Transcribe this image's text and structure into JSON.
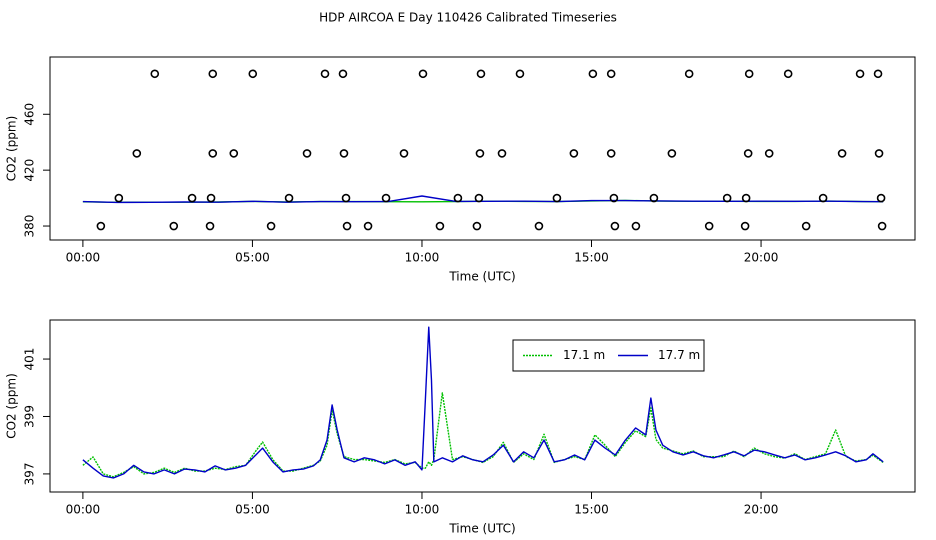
{
  "title": "HDP AIRCOA E  Day 110426  Calibrated Timeseries",
  "chart_data": [
    {
      "type": "line",
      "xlabel": "Time (UTC)",
      "ylabel": "CO2 (ppm)",
      "xlim": [
        -0.97,
        24.54
      ],
      "ylim": [
        370,
        501
      ],
      "xticks": [
        {
          "value": 0,
          "label": "00:00"
        },
        {
          "value": 5,
          "label": "05:00"
        },
        {
          "value": 10,
          "label": "10:00"
        },
        {
          "value": 15,
          "label": "15:00"
        },
        {
          "value": 20,
          "label": "20:00"
        }
      ],
      "yticks": [
        380,
        420,
        460
      ],
      "series": [
        {
          "color": "#00c000",
          "marker": "circle",
          "x": [
            2.12,
            3.83,
            5.01,
            7.14,
            7.67,
            10.03,
            11.74,
            12.89,
            15.04,
            15.58,
            17.88,
            19.65,
            20.8,
            22.92,
            23.45,
            1.59,
            3.83,
            4.45,
            6.61,
            7.7,
            9.47,
            11.71,
            12.36,
            14.48,
            15.58,
            17.37,
            19.62,
            20.24,
            22.39,
            23.48,
            1.06,
            3.22,
            3.78,
            6.08,
            7.76,
            8.94,
            11.06,
            11.68,
            13.98,
            15.66,
            16.84,
            19.0,
            19.56,
            21.83,
            23.54,
            0.53,
            2.68,
            3.75,
            5.55,
            7.79,
            8.41,
            10.53,
            11.62,
            13.45,
            15.69,
            16.31,
            18.47,
            19.53,
            21.33,
            23.57
          ],
          "values": [
            489,
            489,
            489,
            489,
            489,
            489,
            489,
            489,
            489,
            489,
            489,
            489,
            489,
            489,
            489,
            432,
            432,
            432,
            432,
            432,
            432,
            432,
            432,
            432,
            432,
            432,
            432,
            432,
            432,
            432,
            400,
            400,
            400,
            400,
            400,
            400,
            400,
            400,
            400,
            400,
            400,
            400,
            400,
            400,
            400,
            380,
            380,
            380,
            380,
            380,
            380,
            380,
            380,
            380,
            380,
            380,
            380,
            380,
            380,
            380
          ]
        },
        {
          "color": "#00c000",
          "x": [
            0,
            1,
            2,
            3,
            4,
            5,
            6,
            7,
            8,
            9,
            10,
            11,
            12,
            13,
            14,
            15,
            16,
            17,
            18,
            19,
            20,
            21,
            22,
            23,
            23.6
          ],
          "values": [
            397.3,
            397.0,
            397.1,
            397.1,
            397.2,
            397.6,
            397.2,
            397.5,
            397.5,
            397.4,
            397.3,
            397.5,
            397.8,
            397.6,
            397.5,
            398.0,
            398.3,
            397.9,
            397.7,
            397.7,
            397.6,
            397.6,
            397.9,
            397.5,
            397.4
          ]
        },
        {
          "color": "#0000c8",
          "x": [
            0,
            1,
            2,
            3,
            4,
            5,
            6,
            7,
            8,
            9,
            10,
            11,
            12,
            13,
            14,
            15,
            16,
            17,
            18,
            19,
            20,
            21,
            22,
            23,
            23.6
          ],
          "values": [
            397.5,
            396.9,
            397.0,
            397.2,
            397.1,
            397.7,
            397.1,
            397.5,
            397.4,
            397.5,
            401.5,
            397.6,
            397.7,
            397.8,
            397.5,
            398.2,
            398.2,
            398.0,
            397.8,
            397.7,
            397.8,
            397.7,
            397.8,
            397.5,
            397.4
          ]
        }
      ]
    },
    {
      "type": "line",
      "xlabel": "Time (UTC)",
      "ylabel": "CO2 (ppm)",
      "xlim": [
        -0.97,
        24.54
      ],
      "ylim": [
        396.37,
        402.36
      ],
      "xticks": [
        {
          "value": 0,
          "label": "00:00"
        },
        {
          "value": 5,
          "label": "05:00"
        },
        {
          "value": 10,
          "label": "10:00"
        },
        {
          "value": 15,
          "label": "15:00"
        },
        {
          "value": 20,
          "label": "20:00"
        }
      ],
      "yticks": [
        397,
        399,
        401
      ],
      "legend": "top",
      "series": [
        {
          "name": "17.1 m",
          "color": "#00c000",
          "linestyle": "dotted",
          "x": [
            0,
            0.3,
            0.6,
            0.9,
            1.2,
            1.5,
            1.8,
            2.1,
            2.4,
            2.7,
            3.0,
            3.3,
            3.6,
            3.9,
            4.2,
            4.5,
            4.8,
            5.1,
            5.3,
            5.6,
            5.9,
            6.2,
            6.5,
            6.8,
            7.0,
            7.2,
            7.35,
            7.5,
            7.7,
            8.0,
            8.3,
            8.6,
            8.9,
            9.2,
            9.5,
            9.8,
            10.0,
            10.1,
            10.2,
            10.28,
            10.35,
            10.6,
            10.9,
            11.2,
            11.5,
            11.8,
            12.1,
            12.4,
            12.7,
            13.0,
            13.3,
            13.6,
            13.9,
            14.2,
            14.5,
            14.8,
            15.1,
            15.4,
            15.7,
            16.0,
            16.3,
            16.6,
            16.75,
            16.9,
            17.1,
            17.4,
            17.7,
            18.0,
            18.3,
            18.6,
            18.9,
            19.2,
            19.5,
            19.8,
            20.1,
            20.4,
            20.7,
            21.0,
            21.3,
            21.6,
            21.9,
            22.2,
            22.5,
            22.8,
            23.1,
            23.3,
            23.6
          ],
          "values": [
            397.3,
            397.59,
            397.0,
            396.9,
            397.05,
            397.25,
            397.0,
            397.05,
            397.2,
            397.05,
            397.2,
            397.1,
            397.1,
            397.2,
            397.15,
            397.25,
            397.3,
            397.8,
            398.11,
            397.5,
            397.1,
            397.1,
            397.2,
            397.3,
            397.45,
            398.0,
            399.23,
            398.4,
            397.6,
            397.5,
            397.5,
            397.45,
            397.4,
            397.5,
            397.35,
            397.4,
            397.2,
            397.2,
            397.42,
            397.3,
            397.5,
            399.82,
            397.5,
            397.6,
            397.5,
            397.4,
            397.6,
            398.1,
            397.4,
            397.7,
            397.5,
            398.38,
            397.4,
            397.5,
            397.6,
            397.5,
            398.36,
            398.0,
            397.6,
            398.1,
            398.5,
            398.3,
            399.3,
            398.2,
            397.9,
            397.8,
            397.7,
            397.8,
            397.6,
            397.6,
            397.6,
            397.8,
            397.6,
            397.9,
            397.7,
            397.6,
            397.55,
            397.7,
            397.5,
            397.6,
            397.7,
            398.53,
            397.6,
            397.45,
            397.5,
            397.65,
            397.4
          ]
        },
        {
          "name": "17.7 m",
          "color": "#0000c8",
          "x": [
            0,
            0.3,
            0.6,
            0.9,
            1.2,
            1.5,
            1.8,
            2.1,
            2.4,
            2.7,
            3.0,
            3.3,
            3.6,
            3.9,
            4.2,
            4.5,
            4.8,
            5.1,
            5.3,
            5.6,
            5.9,
            6.2,
            6.5,
            6.8,
            7.0,
            7.2,
            7.35,
            7.5,
            7.7,
            8.0,
            8.3,
            8.6,
            8.9,
            9.2,
            9.5,
            9.8,
            10.0,
            10.1,
            10.2,
            10.28,
            10.35,
            10.6,
            10.9,
            11.2,
            11.5,
            11.8,
            12.1,
            12.4,
            12.7,
            13.0,
            13.3,
            13.6,
            13.9,
            14.2,
            14.5,
            14.8,
            15.1,
            15.4,
            15.7,
            16.0,
            16.3,
            16.6,
            16.75,
            16.9,
            17.1,
            17.4,
            17.7,
            18.0,
            18.3,
            18.6,
            18.9,
            19.2,
            19.5,
            19.8,
            20.1,
            20.4,
            20.7,
            21.0,
            21.3,
            21.6,
            21.9,
            22.2,
            22.5,
            22.8,
            23.1,
            23.3,
            23.6
          ],
          "values": [
            397.49,
            397.2,
            396.93,
            396.86,
            397.0,
            397.3,
            397.07,
            397.0,
            397.14,
            397.0,
            397.17,
            397.14,
            397.07,
            397.28,
            397.14,
            397.2,
            397.3,
            397.66,
            397.9,
            397.42,
            397.07,
            397.14,
            397.17,
            397.28,
            397.49,
            398.18,
            399.4,
            398.53,
            397.56,
            397.42,
            397.56,
            397.49,
            397.35,
            397.49,
            397.3,
            397.42,
            397.14,
            399.57,
            402.11,
            400.27,
            397.42,
            397.56,
            397.42,
            397.63,
            397.49,
            397.42,
            397.66,
            398.0,
            397.42,
            397.77,
            397.56,
            398.18,
            397.42,
            397.49,
            397.66,
            397.49,
            398.18,
            397.9,
            397.66,
            398.18,
            398.6,
            398.36,
            399.64,
            398.53,
            398.0,
            397.77,
            397.66,
            397.77,
            397.63,
            397.56,
            397.66,
            397.77,
            397.63,
            397.83,
            397.77,
            397.66,
            397.56,
            397.66,
            397.49,
            397.56,
            397.66,
            397.77,
            397.63,
            397.42,
            397.49,
            397.7,
            397.42
          ]
        }
      ]
    }
  ]
}
